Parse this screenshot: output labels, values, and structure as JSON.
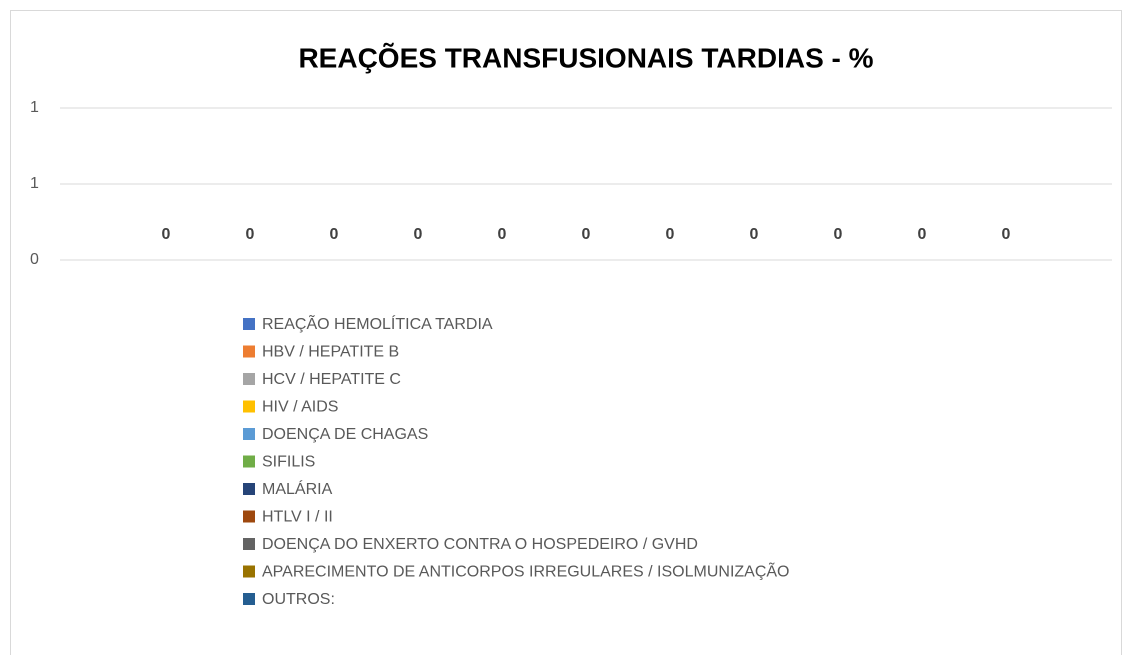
{
  "chart_data": {
    "type": "bar",
    "title": "REAÇÕES TRANSFUSIONAIS TARDIAS - %",
    "categories": [
      null
    ],
    "series": [
      {
        "name": "REAÇÃO HEMOLÍTICA TARDIA",
        "color": "#4472c4",
        "values": [
          0
        ]
      },
      {
        "name": "HBV / HEPATITE B",
        "color": "#ed7d31",
        "values": [
          0
        ]
      },
      {
        "name": "HCV / HEPATITE C",
        "color": "#a5a5a5",
        "values": [
          0
        ]
      },
      {
        "name": "HIV / AIDS",
        "color": "#ffc000",
        "values": [
          0
        ]
      },
      {
        "name": "DOENÇA DE CHAGAS",
        "color": "#5b9bd5",
        "values": [
          0
        ]
      },
      {
        "name": "SIFILIS",
        "color": "#70ad47",
        "values": [
          0
        ]
      },
      {
        "name": "MALÁRIA",
        "color": "#264478",
        "values": [
          0
        ]
      },
      {
        "name": "HTLV I / II",
        "color": "#9e480e",
        "values": [
          0
        ]
      },
      {
        "name": "DOENÇA DO ENXERTO CONTRA O HOSPEDEIRO / GVHD",
        "color": "#636363",
        "values": [
          0
        ]
      },
      {
        "name": "APARECIMENTO DE ANTICORPOS IRREGULARES / ISOLMUNIZAÇÃO",
        "color": "#997300",
        "values": [
          0
        ]
      },
      {
        "name": "OUTROS:",
        "color": "#255e91",
        "values": [
          0
        ]
      }
    ],
    "ylim": [
      0,
      1
    ],
    "yticks": [
      0,
      {
        "value": 0.5,
        "label": "1"
      },
      1
    ],
    "grid": true,
    "legend": "bottom"
  }
}
